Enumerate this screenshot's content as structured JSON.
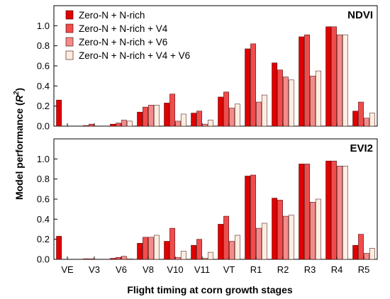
{
  "chart_data": {
    "type": "bar",
    "ylabel_main": "Model performance (",
    "ylabel_sym": "R",
    "ylabel_sup": "2",
    "ylabel_end": ")",
    "xlabel": "Flight timing at corn growth stages",
    "categories": [
      "VE",
      "V3",
      "V6",
      "V8",
      "V10",
      "V11",
      "VT",
      "R1",
      "R2",
      "R3",
      "R4",
      "R5"
    ],
    "series_colors": [
      "#E00000",
      "#F04C4C",
      "#F48B8B",
      "#FCEDE0"
    ],
    "legend": {
      "placement": "top-left of upper panel",
      "entries": [
        "Zero-N + N-rich",
        "Zero-N + N-rich + V4",
        "Zero-N + N-rich + V6",
        "Zero-N + N-rich + V4 + V6"
      ]
    },
    "ylim": [
      0,
      1.2
    ],
    "yticks": [
      "0.0",
      "0.2",
      "0.4",
      "0.6",
      "0.8",
      "1.0"
    ],
    "panels": [
      {
        "title": "NDVI",
        "series": [
          {
            "name": "Zero-N + N-rich",
            "values": [
              0.26,
              0.0,
              0.02,
              0.14,
              0.23,
              0.13,
              0.29,
              0.77,
              0.63,
              0.89,
              0.99,
              0.15
            ]
          },
          {
            "name": "Zero-N + N-rich + V4",
            "values": [
              null,
              0.02,
              0.03,
              0.19,
              0.32,
              0.15,
              0.34,
              0.82,
              0.56,
              0.91,
              0.99,
              0.24
            ]
          },
          {
            "name": "Zero-N + N-rich + V6",
            "values": [
              null,
              null,
              0.06,
              0.21,
              0.05,
              0.02,
              0.18,
              0.24,
              0.49,
              0.5,
              0.91,
              0.08
            ]
          },
          {
            "name": "Zero-N + N-rich + V4 + V6",
            "values": [
              null,
              null,
              0.05,
              0.21,
              0.12,
              0.06,
              0.22,
              0.31,
              0.46,
              0.55,
              0.91,
              0.13
            ]
          }
        ]
      },
      {
        "title": "EVI2",
        "series": [
          {
            "name": "Zero-N + N-rich",
            "values": [
              0.23,
              0.0,
              0.01,
              0.16,
              0.18,
              0.14,
              0.35,
              0.83,
              0.61,
              0.95,
              0.98,
              0.14
            ]
          },
          {
            "name": "Zero-N + N-rich + V4",
            "values": [
              null,
              0.0,
              0.02,
              0.22,
              0.31,
              0.2,
              0.43,
              0.84,
              0.59,
              0.95,
              0.98,
              0.25
            ]
          },
          {
            "name": "Zero-N + N-rich + V6",
            "values": [
              null,
              null,
              0.03,
              0.22,
              0.02,
              0.01,
              0.18,
              0.31,
              0.43,
              0.57,
              0.93,
              0.06
            ]
          },
          {
            "name": "Zero-N + N-rich + V4 + V6",
            "values": [
              null,
              null,
              0.0,
              0.24,
              0.08,
              0.07,
              0.24,
              0.36,
              0.44,
              0.6,
              0.93,
              0.11
            ]
          }
        ]
      }
    ]
  }
}
